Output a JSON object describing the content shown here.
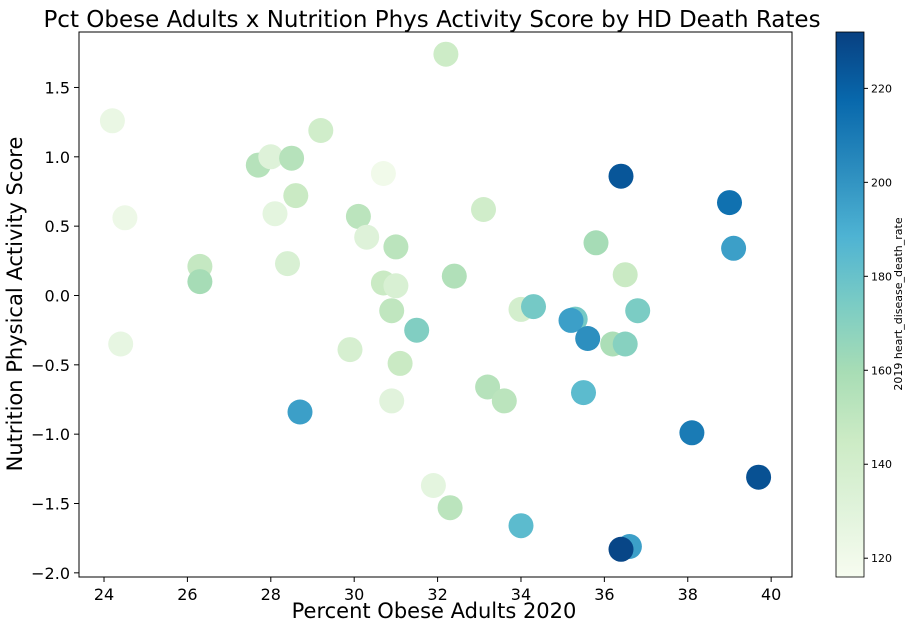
{
  "chart_data": {
    "type": "scatter",
    "title": "Pct Obese Adults x Nutrition Phys Activity Score by HD Death Rates",
    "xlabel": "Percent Obese Adults 2020",
    "ylabel": "Nutrition Physical Activity Score",
    "xlim": [
      23.4,
      40.5
    ],
    "ylim": [
      -2.03,
      1.9
    ],
    "xticks": [
      24,
      26,
      28,
      30,
      32,
      34,
      36,
      38,
      40
    ],
    "yticks": [
      -2.0,
      -1.5,
      -1.0,
      -0.5,
      0.0,
      0.5,
      1.0,
      1.5
    ],
    "xtick_labels": [
      "24",
      "26",
      "28",
      "30",
      "32",
      "34",
      "36",
      "38",
      "40"
    ],
    "ytick_labels": [
      "−2.0",
      "−1.5",
      "−1.0",
      "−0.5",
      "0.0",
      "0.5",
      "1.0",
      "1.5"
    ],
    "grid": false,
    "colormap": "GnBu",
    "colorbar": {
      "label": "2019 heart_disease_death_rate",
      "range": [
        116,
        232
      ],
      "ticks": [
        120,
        140,
        160,
        180,
        200,
        220
      ],
      "tick_labels": [
        "120",
        "140",
        "160",
        "180",
        "200",
        "220"
      ]
    },
    "points": [
      {
        "x": 24.2,
        "y": 1.26,
        "c": 124
      },
      {
        "x": 24.5,
        "y": 0.56,
        "c": 122
      },
      {
        "x": 24.4,
        "y": -0.35,
        "c": 126
      },
      {
        "x": 26.3,
        "y": 0.21,
        "c": 148
      },
      {
        "x": 26.3,
        "y": 0.1,
        "c": 160
      },
      {
        "x": 27.7,
        "y": 0.94,
        "c": 154
      },
      {
        "x": 28.0,
        "y": 1.0,
        "c": 132
      },
      {
        "x": 28.5,
        "y": 0.99,
        "c": 154
      },
      {
        "x": 28.1,
        "y": 0.59,
        "c": 128
      },
      {
        "x": 28.6,
        "y": 0.72,
        "c": 146
      },
      {
        "x": 29.2,
        "y": 1.19,
        "c": 142
      },
      {
        "x": 28.4,
        "y": 0.23,
        "c": 136
      },
      {
        "x": 28.7,
        "y": -0.84,
        "c": 196
      },
      {
        "x": 29.9,
        "y": -0.39,
        "c": 138
      },
      {
        "x": 30.1,
        "y": 0.57,
        "c": 152
      },
      {
        "x": 30.3,
        "y": 0.42,
        "c": 132
      },
      {
        "x": 30.7,
        "y": 0.88,
        "c": 120
      },
      {
        "x": 30.7,
        "y": 0.09,
        "c": 146
      },
      {
        "x": 31.0,
        "y": 0.07,
        "c": 136
      },
      {
        "x": 31.0,
        "y": 0.35,
        "c": 152
      },
      {
        "x": 30.9,
        "y": -0.11,
        "c": 150
      },
      {
        "x": 31.1,
        "y": -0.49,
        "c": 146
      },
      {
        "x": 31.5,
        "y": -0.25,
        "c": 172
      },
      {
        "x": 30.9,
        "y": -0.76,
        "c": 130
      },
      {
        "x": 31.9,
        "y": -1.37,
        "c": 128
      },
      {
        "x": 32.2,
        "y": 1.74,
        "c": 144
      },
      {
        "x": 32.3,
        "y": -1.53,
        "c": 152
      },
      {
        "x": 32.4,
        "y": 0.14,
        "c": 156
      },
      {
        "x": 33.1,
        "y": 0.62,
        "c": 142
      },
      {
        "x": 33.2,
        "y": -0.66,
        "c": 154
      },
      {
        "x": 33.6,
        "y": -0.76,
        "c": 152
      },
      {
        "x": 34.0,
        "y": -0.1,
        "c": 140
      },
      {
        "x": 34.3,
        "y": -0.08,
        "c": 176
      },
      {
        "x": 34.0,
        "y": -1.66,
        "c": 184
      },
      {
        "x": 35.3,
        "y": -0.17,
        "c": 176
      },
      {
        "x": 35.2,
        "y": -0.18,
        "c": 196
      },
      {
        "x": 35.6,
        "y": -0.31,
        "c": 202
      },
      {
        "x": 35.5,
        "y": -0.7,
        "c": 184
      },
      {
        "x": 35.8,
        "y": 0.38,
        "c": 160
      },
      {
        "x": 36.2,
        "y": -0.35,
        "c": 158
      },
      {
        "x": 36.5,
        "y": 0.15,
        "c": 146
      },
      {
        "x": 36.5,
        "y": -0.35,
        "c": 170
      },
      {
        "x": 36.4,
        "y": 0.86,
        "c": 224
      },
      {
        "x": 36.8,
        "y": -0.11,
        "c": 174
      },
      {
        "x": 36.6,
        "y": -1.81,
        "c": 196
      },
      {
        "x": 36.4,
        "y": -1.83,
        "c": 230
      },
      {
        "x": 38.1,
        "y": -0.99,
        "c": 210
      },
      {
        "x": 39.0,
        "y": 0.67,
        "c": 214
      },
      {
        "x": 39.1,
        "y": 0.34,
        "c": 196
      },
      {
        "x": 39.7,
        "y": -1.31,
        "c": 226
      }
    ]
  }
}
